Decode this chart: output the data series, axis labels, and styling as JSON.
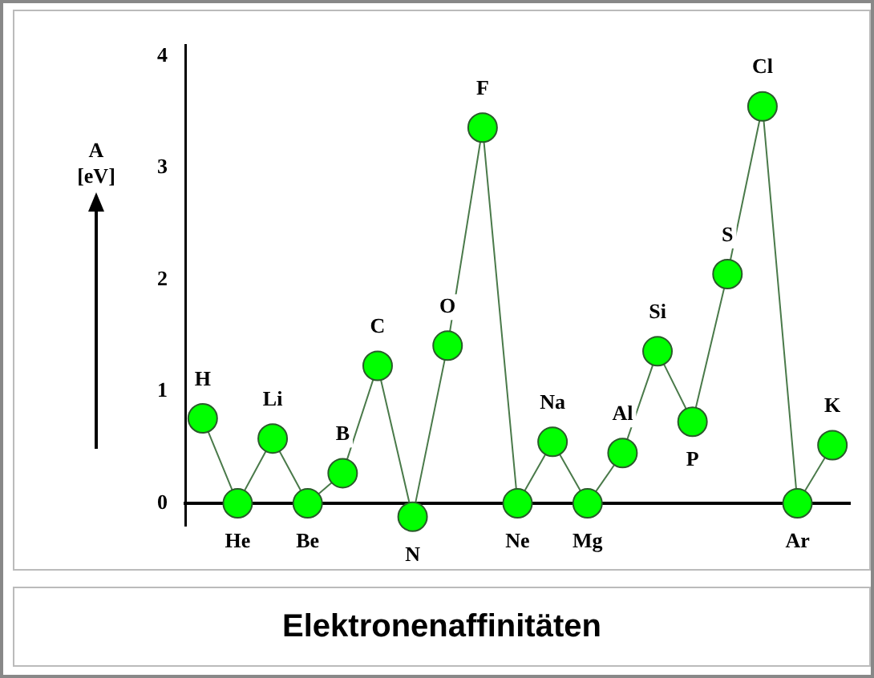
{
  "chart_data": {
    "type": "line",
    "title": "Elektronenaffinitäten",
    "ylabel": "A [eV]",
    "categories": [
      "H",
      "He",
      "Li",
      "Be",
      "B",
      "C",
      "N",
      "O",
      "F",
      "Ne",
      "Na",
      "Mg",
      "Al",
      "Si",
      "P",
      "S",
      "Cl",
      "Ar",
      "K"
    ],
    "series": [
      {
        "color": "#00ff00",
        "values": [
          0.76,
          0,
          0.58,
          0,
          0.27,
          1.23,
          -0.12,
          1.41,
          3.36,
          0,
          0.55,
          0,
          0.45,
          1.36,
          0.73,
          2.05,
          3.55,
          0,
          0.52
        ]
      }
    ],
    "ylim": [
      -0.2,
      4.1
    ],
    "yticks": [
      0,
      1,
      2,
      3,
      4
    ],
    "grid": false,
    "legend": false,
    "marker": "circle",
    "line_style": "solid"
  }
}
